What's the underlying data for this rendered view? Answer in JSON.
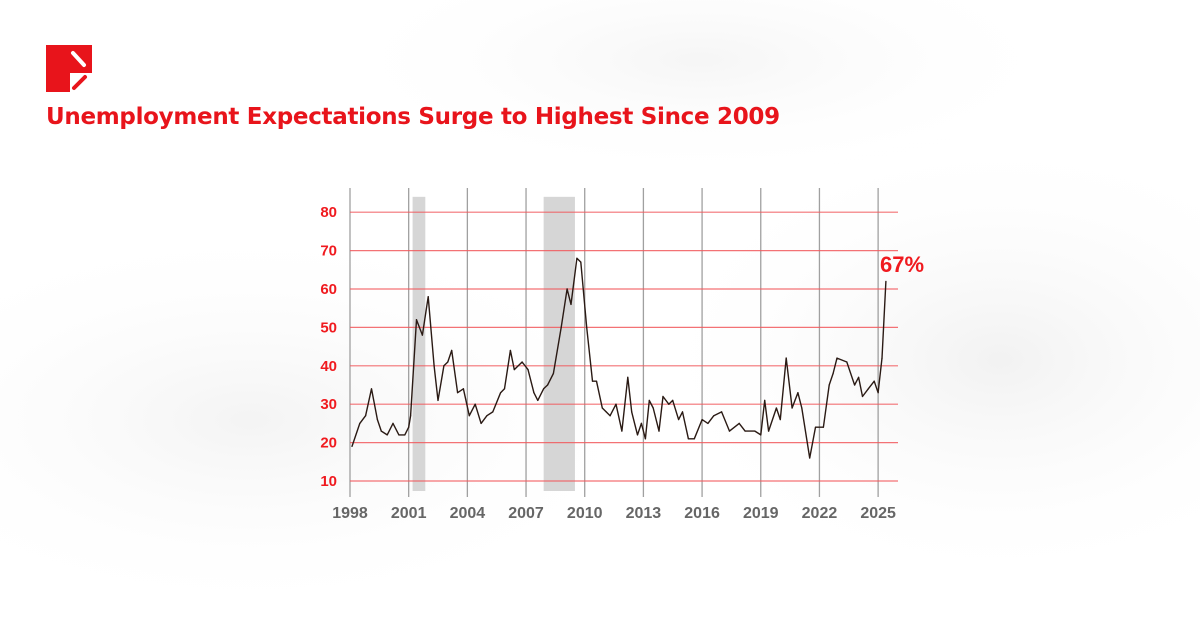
{
  "header": {
    "title": "Unemployment Expectations Surge to Highest Since 2009",
    "brand_color": "#e8141b"
  },
  "chart_data": {
    "type": "line",
    "title": "Unemployment Expectations Surge to Highest Since 2009",
    "xlabel": "",
    "ylabel": "",
    "xlim": [
      1998,
      2025.9
    ],
    "ylim": [
      5,
      86
    ],
    "grid": true,
    "x_ticks": [
      "1998",
      "2001",
      "2004",
      "2007",
      "2010",
      "2013",
      "2016",
      "2019",
      "2022",
      "2025"
    ],
    "y_ticks": [
      "10",
      "20",
      "30",
      "40",
      "50",
      "60",
      "70",
      "80"
    ],
    "shaded_periods": [
      [
        2001.2,
        2001.85
      ],
      [
        2007.9,
        2009.5
      ]
    ],
    "annotation": "67%",
    "line_color": "#2a1a14",
    "grid_color": "#f25a5e",
    "series": [
      {
        "x": [
          1998.1,
          1998.5,
          1998.8,
          1999.1,
          1999.4,
          1999.6,
          1999.9,
          2000.2,
          2000.5,
          2000.8,
          2001.0,
          2001.1,
          2001.4,
          2001.7,
          2002.0,
          2002.3,
          2002.5,
          2002.8,
          2003.0,
          2003.2,
          2003.5,
          2003.8,
          2004.1,
          2004.4,
          2004.7,
          2005.0,
          2005.3,
          2005.7,
          2005.9,
          2006.2,
          2006.4,
          2006.8,
          2007.1,
          2007.4,
          2007.6,
          2007.9,
          2008.1,
          2008.4,
          2008.8,
          2009.1,
          2009.3,
          2009.6,
          2009.8,
          2010.1,
          2010.4,
          2010.6,
          2010.9,
          2011.1,
          2011.3,
          2011.6,
          2011.9,
          2012.2,
          2012.4,
          2012.7,
          2012.9,
          2013.1,
          2013.3,
          2013.5,
          2013.8,
          2014.0,
          2014.3,
          2014.5,
          2014.8,
          2015.0,
          2015.3,
          2015.6,
          2016.0,
          2016.3,
          2016.6,
          2017.0,
          2017.4,
          2017.9,
          2018.2,
          2018.7,
          2019.0,
          2019.2,
          2019.4,
          2019.8,
          2020.0,
          2020.3,
          2020.6,
          2020.9,
          2021.1,
          2021.5,
          2021.8,
          2022.2,
          2022.5,
          2022.7,
          2022.9,
          2023.4,
          2023.8,
          2024.0,
          2024.2,
          2024.5,
          2024.8,
          2025.0,
          2025.2,
          2025.4
        ],
        "values": [
          19,
          25,
          27,
          34,
          26,
          23,
          22,
          25,
          22,
          22,
          24,
          27,
          52,
          48,
          58,
          40,
          31,
          40,
          41,
          44,
          33,
          34,
          27,
          30,
          25,
          27,
          28,
          33,
          34,
          44,
          39,
          41,
          39,
          33,
          31,
          34,
          35,
          38,
          50,
          60,
          56,
          68,
          67,
          50,
          36,
          36,
          29,
          28,
          27,
          30,
          23,
          37,
          28,
          22,
          25,
          21,
          31,
          29,
          23,
          32,
          30,
          31,
          26,
          28,
          21,
          21,
          26,
          25,
          27,
          28,
          23,
          25,
          23,
          23,
          22,
          31,
          23,
          29,
          26,
          42,
          29,
          33,
          29,
          16,
          24,
          24,
          35,
          38,
          42,
          41,
          35,
          37,
          32,
          34,
          36,
          33,
          42,
          62
        ]
      }
    ]
  }
}
